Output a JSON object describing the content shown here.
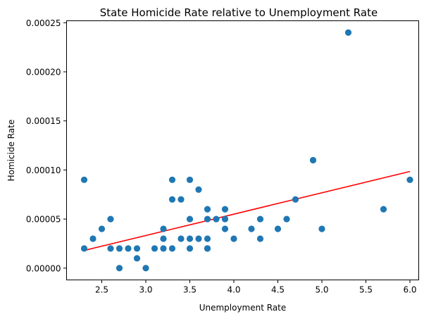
{
  "chart_data": {
    "type": "scatter",
    "title": "State Homicide Rate relative to Unemployment Rate",
    "xlabel": "Unemployment Rate",
    "ylabel": "Homicide Rate",
    "xlim": [
      2.1,
      6.1
    ],
    "ylim": [
      -1.2e-05,
      0.000252
    ],
    "x_ticks": [
      2.5,
      3.0,
      3.5,
      4.0,
      4.5,
      5.0,
      5.5,
      6.0
    ],
    "x_tick_labels": [
      "2.5",
      "3.0",
      "3.5",
      "4.0",
      "4.5",
      "5.0",
      "5.5",
      "6.0"
    ],
    "y_ticks": [
      0,
      5e-05,
      0.0001,
      0.00015,
      0.0002,
      0.00025
    ],
    "y_tick_labels": [
      "0.00000",
      "0.00005",
      "0.00010",
      "0.00015",
      "0.00020",
      "0.00025"
    ],
    "grid": false,
    "colors": {
      "points": "#1f77b4",
      "fit_line": "#ff0000"
    },
    "points": [
      [
        2.3,
        9e-05
      ],
      [
        2.3,
        2e-05
      ],
      [
        2.4,
        3e-05
      ],
      [
        2.5,
        4e-05
      ],
      [
        2.6,
        5e-05
      ],
      [
        2.6,
        2e-05
      ],
      [
        2.7,
        2e-05
      ],
      [
        2.7,
        0.0
      ],
      [
        2.8,
        2e-05
      ],
      [
        2.9,
        2e-05
      ],
      [
        2.9,
        1e-05
      ],
      [
        3.0,
        0.0
      ],
      [
        3.1,
        2e-05
      ],
      [
        3.2,
        4e-05
      ],
      [
        3.2,
        3e-05
      ],
      [
        3.2,
        2e-05
      ],
      [
        3.3,
        9e-05
      ],
      [
        3.3,
        7e-05
      ],
      [
        3.3,
        2e-05
      ],
      [
        3.4,
        7e-05
      ],
      [
        3.4,
        3e-05
      ],
      [
        3.5,
        9e-05
      ],
      [
        3.5,
        5e-05
      ],
      [
        3.5,
        3e-05
      ],
      [
        3.5,
        2e-05
      ],
      [
        3.6,
        8e-05
      ],
      [
        3.6,
        3e-05
      ],
      [
        3.7,
        6e-05
      ],
      [
        3.7,
        5e-05
      ],
      [
        3.7,
        3e-05
      ],
      [
        3.7,
        2e-05
      ],
      [
        3.7,
        2e-05
      ],
      [
        3.8,
        5e-05
      ],
      [
        3.9,
        6e-05
      ],
      [
        3.9,
        5e-05
      ],
      [
        3.9,
        4e-05
      ],
      [
        4.0,
        3e-05
      ],
      [
        4.2,
        4e-05
      ],
      [
        4.3,
        5e-05
      ],
      [
        4.3,
        3e-05
      ],
      [
        4.5,
        4e-05
      ],
      [
        4.6,
        5e-05
      ],
      [
        4.7,
        7e-05
      ],
      [
        4.9,
        0.00011
      ],
      [
        5.0,
        4e-05
      ],
      [
        5.3,
        0.00024
      ],
      [
        5.7,
        6e-05
      ],
      [
        6.0,
        9e-05
      ]
    ],
    "fit_line": {
      "x": [
        2.3,
        6.0
      ],
      "y": [
        1.8e-05,
        9.85e-05
      ]
    }
  }
}
